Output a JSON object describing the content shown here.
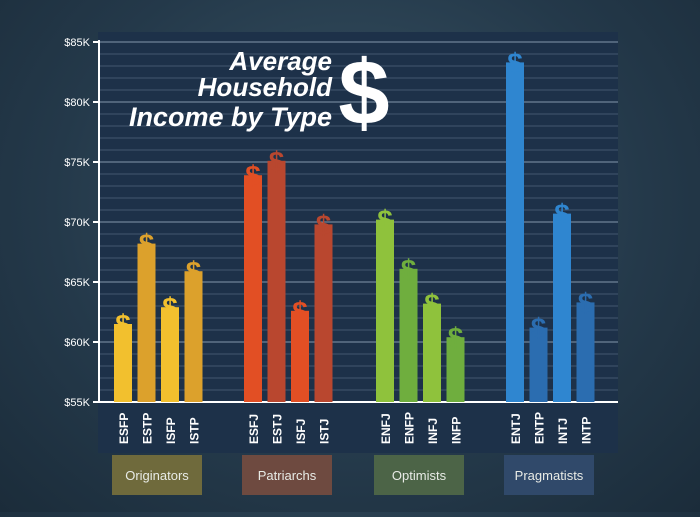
{
  "chart_data": {
    "type": "bar",
    "title": "Average Household Income by Type",
    "title_lines": [
      "Average",
      "Household",
      "Income by Type"
    ],
    "title_symbol": "$",
    "bar_symbol": "$",
    "ylim": [
      55000,
      85000
    ],
    "yticks": [
      {
        "value": 55000,
        "label": "$55K"
      },
      {
        "value": 60000,
        "label": "$60K"
      },
      {
        "value": 65000,
        "label": "$65K"
      },
      {
        "value": 70000,
        "label": "$70K"
      },
      {
        "value": 75000,
        "label": "$75K"
      },
      {
        "value": 80000,
        "label": "$80K"
      },
      {
        "value": 85000,
        "label": "$85K"
      }
    ],
    "grid": true,
    "groups": [
      {
        "name": "Originators",
        "color": "#f2c02e",
        "alt_color": "#dca12c",
        "label_bg": "#6f6a3c",
        "bars": [
          {
            "type": "ESFP",
            "value": 61500
          },
          {
            "type": "ESTP",
            "value": 68200
          },
          {
            "type": "ISFP",
            "value": 62900
          },
          {
            "type": "ISTP",
            "value": 65900
          }
        ]
      },
      {
        "name": "Patriarchs",
        "color": "#e24f24",
        "alt_color": "#b9472f",
        "label_bg": "#6e4a40",
        "bars": [
          {
            "type": "ESFJ",
            "value": 73900
          },
          {
            "type": "ESTJ",
            "value": 75100
          },
          {
            "type": "ISFJ",
            "value": 62600
          },
          {
            "type": "ISTJ",
            "value": 69800
          }
        ]
      },
      {
        "name": "Optimists",
        "color": "#8fc23c",
        "alt_color": "#6fae3e",
        "label_bg": "#4c6447",
        "bars": [
          {
            "type": "ENFJ",
            "value": 70200
          },
          {
            "type": "ENFP",
            "value": 66100
          },
          {
            "type": "INFJ",
            "value": 63200
          },
          {
            "type": "INFP",
            "value": 60400
          }
        ]
      },
      {
        "name": "Pragmatists",
        "color": "#2f86d0",
        "alt_color": "#2b6db0",
        "label_bg": "#30496a",
        "bars": [
          {
            "type": "ENTJ",
            "value": 83300
          },
          {
            "type": "ENTP",
            "value": 61200
          },
          {
            "type": "INTJ",
            "value": 70700
          },
          {
            "type": "INTP",
            "value": 63300
          }
        ]
      }
    ]
  }
}
